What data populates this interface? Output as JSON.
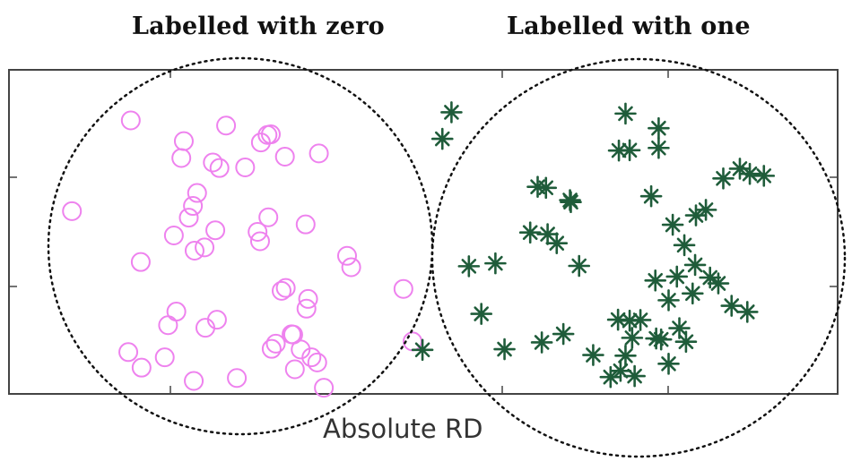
{
  "group_titles": {
    "zero": "Labelled with zero",
    "one": "Labelled with one"
  },
  "chart_data": {
    "type": "scatter",
    "title": "",
    "xlabel": "Absolute RD",
    "ylabel": "",
    "xlim": [
      0,
      10
    ],
    "ylim": [
      0,
      10
    ],
    "grid": false,
    "legend": "none",
    "tick_labels_shown": false,
    "groups": [
      {
        "label": "Labelled with zero",
        "boundary": "dotted-circle",
        "marker": "open-circle",
        "color": "#ee82ee",
        "x": [
          1.47,
          0.76,
          2.11,
          2.62,
          2.08,
          2.27,
          2.17,
          2.46,
          2.85,
          3.33,
          3.04,
          3.12,
          3.74,
          3.16,
          2.54,
          2.22,
          2.49,
          1.99,
          2.24,
          1.59,
          2.02,
          1.92,
          2.37,
          3.43,
          3.41,
          3.17,
          3.22,
          3.52,
          3.65,
          3.72,
          3.45,
          2.75,
          2.23,
          1.6,
          1.88,
          1.44,
          4.08,
          4.13,
          4.87,
          4.76,
          3.29,
          3.59,
          3.34,
          3.61,
          2.36,
          3.03,
          3.0,
          3.13,
          3.58,
          2.51,
          3.8
        ],
        "y": [
          8.44,
          5.64,
          7.8,
          8.28,
          7.28,
          6.2,
          5.44,
          7.14,
          6.99,
          7.32,
          7.76,
          7.99,
          7.42,
          8.01,
          6.97,
          5.8,
          5.05,
          4.89,
          4.42,
          4.07,
          2.54,
          2.12,
          2.04,
          1.83,
          1.84,
          1.39,
          1.55,
          1.37,
          1.13,
          0.97,
          0.76,
          0.49,
          0.4,
          0.81,
          1.13,
          1.29,
          4.26,
          3.91,
          1.62,
          3.24,
          3.18,
          2.63,
          3.27,
          2.93,
          4.52,
          4.71,
          5.0,
          5.45,
          5.23,
          2.29,
          0.19
        ]
      },
      {
        "label": "Labelled with one",
        "boundary": "dotted-circle",
        "marker": "star",
        "color": "#1f5c3a",
        "x": [
          5.34,
          5.23,
          5.7,
          5.55,
          5.87,
          6.38,
          6.5,
          6.61,
          6.88,
          7.05,
          7.26,
          7.38,
          7.55,
          7.62,
          7.52,
          7.44,
          7.49,
          7.35,
          7.81,
          7.96,
          8.17,
          8.09,
          8.06,
          8.28,
          8.46,
          8.56,
          8.72,
          8.91,
          8.82,
          8.25,
          7.84,
          7.84,
          7.75,
          7.49,
          7.36,
          7.44,
          7.87,
          7.96,
          7.8,
          8.15,
          8.01,
          8.29,
          8.41,
          8.62,
          9.11,
          8.94,
          6.78,
          6.77,
          6.48,
          6.29,
          6.43,
          6.69,
          5.98,
          4.99
        ],
        "y": [
          8.69,
          7.87,
          2.47,
          3.94,
          4.03,
          6.39,
          4.93,
          4.65,
          3.95,
          1.2,
          0.52,
          0.71,
          0.55,
          2.28,
          1.73,
          1.18,
          2.26,
          2.29,
          1.71,
          0.93,
          1.61,
          2.03,
          3.62,
          3.98,
          3.59,
          3.41,
          2.72,
          2.53,
          6.95,
          3.1,
          8.2,
          7.59,
          6.1,
          7.52,
          7.51,
          8.65,
          1.68,
          2.89,
          3.5,
          4.59,
          5.22,
          5.51,
          5.68,
          6.65,
          6.73,
          6.79,
          5.92,
          5.98,
          6.36,
          4.98,
          1.59,
          1.85,
          1.38,
          1.36
        ]
      }
    ]
  }
}
